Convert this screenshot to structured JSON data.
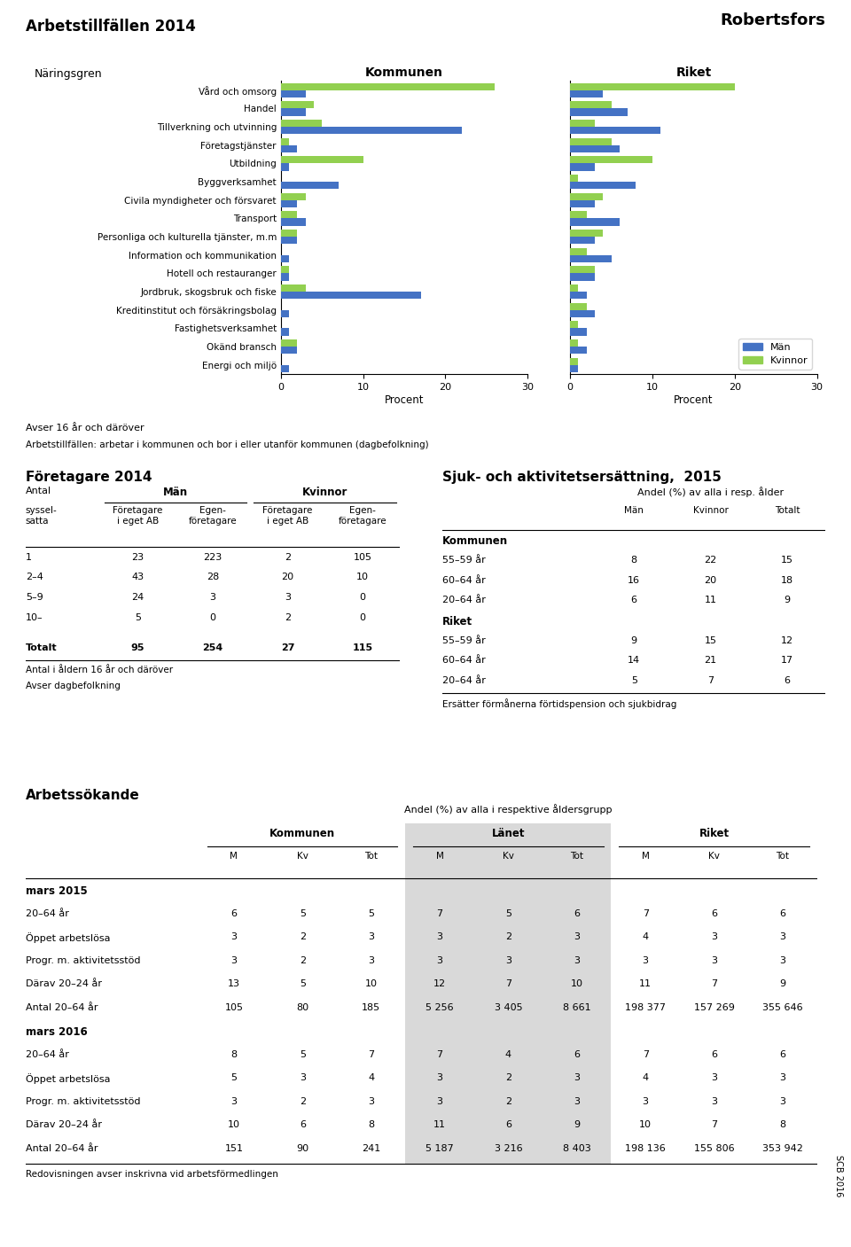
{
  "title": "Robertsfors",
  "subtitle": "Arbetstillfällen 2014",
  "annotations": [
    "Avser 16 år och däröver",
    "Arbetstillfällen: arbetar i kommunen och bor i eller utanför kommunen (dagbefolkning)",
    "SCB 2016"
  ],
  "chart_data": [
    {
      "type": "bar",
      "orientation": "horizontal",
      "title": "Kommunen",
      "xlabel": "Procent",
      "ylabel": "Näringsgren",
      "categories": [
        "Vård och omsorg",
        "Handel",
        "Tillverkning och utvinning",
        "Företagstjänster",
        "Utbildning",
        "Byggverksamhet",
        "Civila myndigheter och försvaret",
        "Transport",
        "Personliga och kulturella tjänster, m.m",
        "Information och kommunikation",
        "Hotell och restauranger",
        "Jordbruk, skogsbruk och fiske",
        "Kreditinstitut och försäkringsbolag",
        "Fastighetsverksamhet",
        "Okänd bransch",
        "Energi och miljö"
      ],
      "series": [
        {
          "name": "Män",
          "color": "#4472c4",
          "values": [
            3,
            3,
            22,
            2,
            1,
            7,
            2,
            3,
            2,
            1,
            1,
            17,
            1,
            1,
            2,
            1
          ]
        },
        {
          "name": "Kvinnor",
          "color": "#92d050",
          "values": [
            26,
            4,
            5,
            1,
            10,
            0,
            3,
            2,
            2,
            0,
            1,
            3,
            0,
            0,
            2,
            0
          ]
        }
      ],
      "xlim": [
        0,
        30
      ],
      "xticks": [
        0,
        10,
        20,
        30
      ]
    },
    {
      "type": "bar",
      "orientation": "horizontal",
      "title": "Riket",
      "xlabel": "Procent",
      "tick_labels": "x",
      "legend": "lower right",
      "categories": [
        "Vård och omsorg",
        "Handel",
        "Tillverkning och utvinning",
        "Företagstjänster",
        "Utbildning",
        "Byggverksamhet",
        "Civila myndigheter och försvaret",
        "Transport",
        "Personliga och kulturella tjänster, m.m",
        "Information och kommunikation",
        "Hotell och restauranger",
        "Jordbruk, skogsbruk och fiske",
        "Kreditinstitut och försäkringsbolag",
        "Fastighetsverksamhet",
        "Okänd bransch",
        "Energi och miljö"
      ],
      "series": [
        {
          "name": "Män",
          "color": "#4472c4",
          "values": [
            4,
            7,
            11,
            6,
            3,
            8,
            3,
            6,
            3,
            5,
            3,
            2,
            3,
            2,
            2,
            1
          ]
        },
        {
          "name": "Kvinnor",
          "color": "#92d050",
          "values": [
            20,
            5,
            3,
            5,
            10,
            1,
            4,
            2,
            4,
            2,
            3,
            1,
            2,
            1,
            1,
            1
          ]
        }
      ],
      "xlim": [
        0,
        30
      ],
      "xticks": [
        0,
        10,
        20,
        30
      ]
    },
    {
      "type": "table",
      "title": "Företagare 2014",
      "column_groups": [
        {
          "label": "Antal",
          "columns": [
            "syssel-\nsatta"
          ]
        },
        {
          "label": "Män",
          "columns": [
            "Företagare\ni eget AB",
            "Egen-\nföretagare"
          ]
        },
        {
          "label": "Kvinnor",
          "columns": [
            "Företagare\ni eget AB",
            "Egen-\nföretagare"
          ]
        }
      ],
      "rows": [
        {
          "label": "1",
          "values": [
            23,
            223,
            2,
            105
          ]
        },
        {
          "label": "2–4",
          "values": [
            43,
            28,
            20,
            10
          ]
        },
        {
          "label": "5–9",
          "values": [
            24,
            3,
            3,
            0
          ]
        },
        {
          "label": "10–",
          "values": [
            5,
            0,
            2,
            0
          ]
        }
      ],
      "total": {
        "label": "Totalt",
        "values": [
          95,
          254,
          27,
          115
        ]
      },
      "notes": [
        "Antal i åldern 16 år och däröver",
        "Avser dagbefolkning"
      ]
    },
    {
      "type": "table",
      "title": "Sjuk- och aktivitetsersättning,  2015",
      "subtitle": "Andel (%) av alla i resp. ålder",
      "columns": [
        "Män",
        "Kvinnor",
        "Totalt"
      ],
      "sections": [
        {
          "label": "Kommunen",
          "rows": [
            {
              "label": "55–59 år",
              "values": [
                8,
                22,
                15
              ]
            },
            {
              "label": "60–64 år",
              "values": [
                16,
                20,
                18
              ]
            },
            {
              "label": "20–64 år",
              "values": [
                6,
                11,
                9
              ]
            }
          ]
        },
        {
          "label": "Riket",
          "rows": [
            {
              "label": "55–59 år",
              "values": [
                9,
                15,
                12
              ]
            },
            {
              "label": "60–64 år",
              "values": [
                14,
                21,
                17
              ]
            },
            {
              "label": "20–64 år",
              "values": [
                5,
                7,
                6
              ]
            }
          ]
        }
      ],
      "notes": [
        "Ersätter förmånerna förtidspension och sjukbidrag"
      ]
    },
    {
      "type": "table",
      "title": "Arbetssökande",
      "subtitle": "Andel (%) av alla i respektive åldersgrupp",
      "column_groups": [
        {
          "label": "Kommunen",
          "columns": [
            "M",
            "Kv",
            "Tot"
          ]
        },
        {
          "label": "Länet",
          "columns": [
            "M",
            "Kv",
            "Tot"
          ],
          "color": "#d9d9d9"
        },
        {
          "label": "Riket",
          "columns": [
            "M",
            "Kv",
            "Tot"
          ]
        }
      ],
      "sections": [
        {
          "label": "mars 2015",
          "rows": [
            {
              "label": "20–64 år",
              "values": [
                6,
                5,
                5,
                7,
                5,
                6,
                7,
                6,
                6
              ]
            },
            {
              "label": "Öppet arbetslösa",
              "values": [
                3,
                2,
                3,
                3,
                2,
                3,
                4,
                3,
                3
              ]
            },
            {
              "label": "Progr. m. aktivitetsstöd",
              "values": [
                3,
                2,
                3,
                3,
                3,
                3,
                3,
                3,
                3
              ]
            },
            {
              "label": "Därav 20–24 år",
              "values": [
                13,
                5,
                10,
                12,
                7,
                10,
                11,
                7,
                9
              ]
            },
            {
              "label": "Antal 20–64 år",
              "values": [
                105,
                80,
                185,
                {
                  "value": 5256,
                  "label": "5 256"
                },
                {
                  "value": 3405,
                  "label": "3 405"
                },
                {
                  "value": 8661,
                  "label": "8 661"
                },
                {
                  "value": 198377,
                  "label": "198 377"
                },
                {
                  "value": 157269,
                  "label": "157 269"
                },
                {
                  "value": 355646,
                  "label": "355 646"
                }
              ]
            }
          ]
        },
        {
          "label": "mars 2016",
          "rows": [
            {
              "label": "20–64 år",
              "values": [
                8,
                5,
                7,
                7,
                4,
                6,
                7,
                6,
                6
              ]
            },
            {
              "label": "Öppet arbetslösa",
              "values": [
                5,
                3,
                4,
                3,
                2,
                3,
                4,
                3,
                3
              ]
            },
            {
              "label": "Progr. m. aktivitetsstöd",
              "values": [
                3,
                2,
                3,
                3,
                2,
                3,
                3,
                3,
                3
              ]
            },
            {
              "label": "Därav 20–24 år",
              "values": [
                10,
                6,
                8,
                11,
                6,
                9,
                10,
                7,
                8
              ]
            },
            {
              "label": "Antal 20–64 år",
              "values": [
                151,
                90,
                241,
                {
                  "value": 5187,
                  "label": "5 187"
                },
                {
                  "value": 3216,
                  "label": "3 216"
                },
                {
                  "value": 8403,
                  "label": "8 403"
                },
                {
                  "value": 198136,
                  "label": "198 136"
                },
                {
                  "value": 155806,
                  "label": "155 806"
                },
                {
                  "value": 353942,
                  "label": "353 942"
                }
              ]
            }
          ]
        }
      ],
      "notes": [
        "Redovisningen avser inskrivna vid arbetsförmedlingen"
      ]
    }
  ]
}
